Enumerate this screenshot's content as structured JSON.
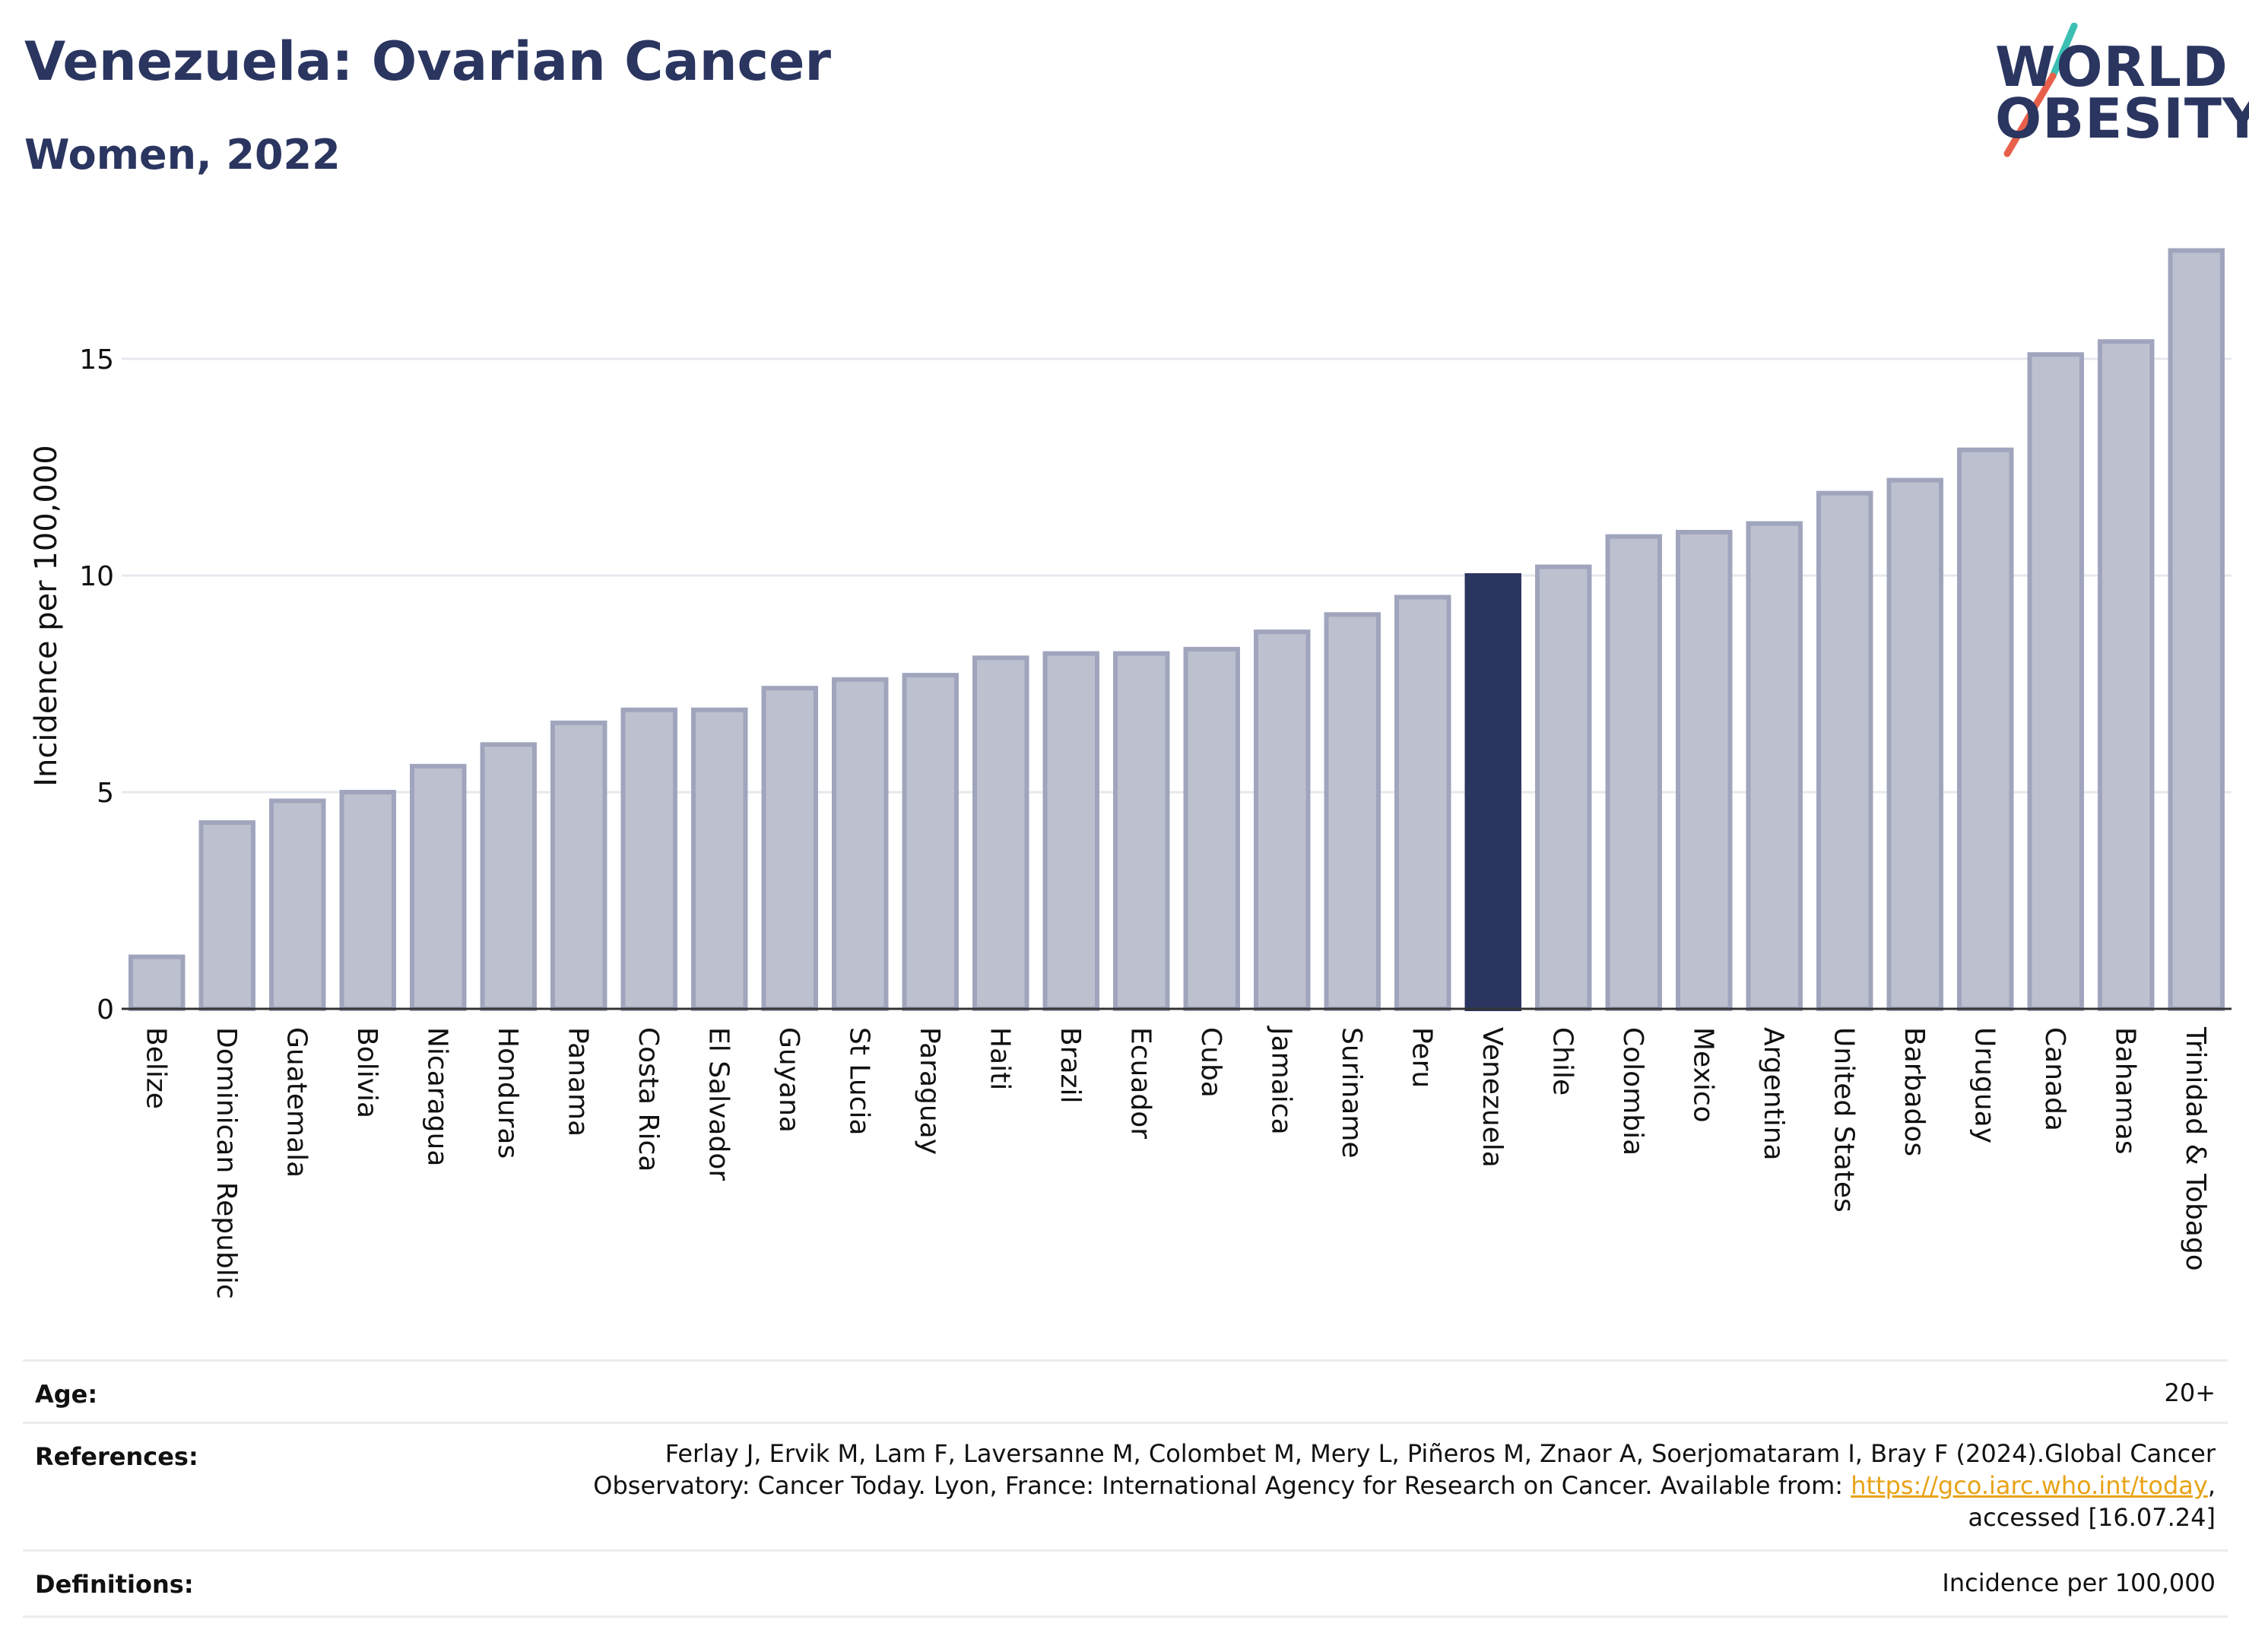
{
  "header": {
    "title": "Venezuela: Ovarian Cancer",
    "subtitle": "Women, 2022"
  },
  "logo": {
    "line1": "WORLD",
    "line2": "OBESITY",
    "accent_colors": [
      "#3bbfb2",
      "#e8604c"
    ]
  },
  "colors": {
    "bar_default": "#bdc0ce",
    "bar_border": "#a0a5bd",
    "bar_highlight": "#2a3560",
    "text": "#2a3560",
    "grid": "#e6e8ee"
  },
  "chart_data": {
    "type": "bar",
    "ylabel": "Incidence per 100,000",
    "ylim": [
      0,
      17.6
    ],
    "yticks": [
      0,
      5,
      10,
      15
    ],
    "grid": true,
    "highlight": "Venezuela",
    "categories": [
      "Belize",
      "Dominican Republic",
      "Guatemala",
      "Bolivia",
      "Nicaragua",
      "Honduras",
      "Panama",
      "Costa Rica",
      "El Salvador",
      "Guyana",
      "St Lucia",
      "Paraguay",
      "Haiti",
      "Brazil",
      "Ecuador",
      "Cuba",
      "Jamaica",
      "Suriname",
      "Peru",
      "Venezuela",
      "Chile",
      "Colombia",
      "Mexico",
      "Argentina",
      "United States",
      "Barbados",
      "Uruguay",
      "Canada",
      "Bahamas",
      "Trinidad & Tobago"
    ],
    "values": [
      1.2,
      4.3,
      4.8,
      5.0,
      5.6,
      6.1,
      6.6,
      6.9,
      6.9,
      7.4,
      7.6,
      7.7,
      8.1,
      8.2,
      8.2,
      8.3,
      8.7,
      9.1,
      9.5,
      10.0,
      10.2,
      10.9,
      11.0,
      11.2,
      11.9,
      12.2,
      12.9,
      15.1,
      15.4,
      17.5
    ]
  },
  "footer": {
    "age": {
      "label": "Age:",
      "value": "20+"
    },
    "references": {
      "label": "References:",
      "line1": "Ferlay J, Ervik M, Lam F, Laversanne M, Colombet M, Mery L, Piñeros M, Znaor A, Soerjomataram I, Bray F (2024).Global Cancer",
      "line2_prefix": "Observatory: Cancer Today. Lyon, France: International Agency for Research on Cancer. Available from: ",
      "link": "https://gco.iarc.who.int/today",
      "line2_suffix": ",",
      "line3": "accessed [16.07.24]"
    },
    "definitions": {
      "label": "Definitions:",
      "value": "Incidence per 100,000"
    }
  }
}
